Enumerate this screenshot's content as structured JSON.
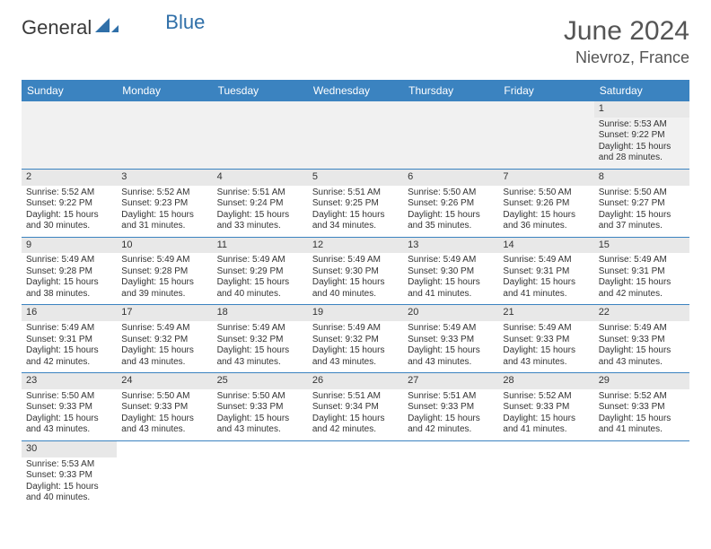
{
  "brand": {
    "part1": "General",
    "part2": "Blue",
    "logo_color": "#2f6fa8"
  },
  "title": "June 2024",
  "location": "Nievroz, France",
  "colors": {
    "header_bg": "#3b83c0",
    "header_fg": "#ffffff",
    "daynum_bg": "#e8e8e8",
    "row_divider": "#3b83c0",
    "text": "#333333"
  },
  "weekdays": [
    "Sunday",
    "Monday",
    "Tuesday",
    "Wednesday",
    "Thursday",
    "Friday",
    "Saturday"
  ],
  "weeks": [
    [
      null,
      null,
      null,
      null,
      null,
      null,
      {
        "n": "1",
        "sr": "Sunrise: 5:53 AM",
        "ss": "Sunset: 9:22 PM",
        "d1": "Daylight: 15 hours",
        "d2": "and 28 minutes."
      }
    ],
    [
      {
        "n": "2",
        "sr": "Sunrise: 5:52 AM",
        "ss": "Sunset: 9:22 PM",
        "d1": "Daylight: 15 hours",
        "d2": "and 30 minutes."
      },
      {
        "n": "3",
        "sr": "Sunrise: 5:52 AM",
        "ss": "Sunset: 9:23 PM",
        "d1": "Daylight: 15 hours",
        "d2": "and 31 minutes."
      },
      {
        "n": "4",
        "sr": "Sunrise: 5:51 AM",
        "ss": "Sunset: 9:24 PM",
        "d1": "Daylight: 15 hours",
        "d2": "and 33 minutes."
      },
      {
        "n": "5",
        "sr": "Sunrise: 5:51 AM",
        "ss": "Sunset: 9:25 PM",
        "d1": "Daylight: 15 hours",
        "d2": "and 34 minutes."
      },
      {
        "n": "6",
        "sr": "Sunrise: 5:50 AM",
        "ss": "Sunset: 9:26 PM",
        "d1": "Daylight: 15 hours",
        "d2": "and 35 minutes."
      },
      {
        "n": "7",
        "sr": "Sunrise: 5:50 AM",
        "ss": "Sunset: 9:26 PM",
        "d1": "Daylight: 15 hours",
        "d2": "and 36 minutes."
      },
      {
        "n": "8",
        "sr": "Sunrise: 5:50 AM",
        "ss": "Sunset: 9:27 PM",
        "d1": "Daylight: 15 hours",
        "d2": "and 37 minutes."
      }
    ],
    [
      {
        "n": "9",
        "sr": "Sunrise: 5:49 AM",
        "ss": "Sunset: 9:28 PM",
        "d1": "Daylight: 15 hours",
        "d2": "and 38 minutes."
      },
      {
        "n": "10",
        "sr": "Sunrise: 5:49 AM",
        "ss": "Sunset: 9:28 PM",
        "d1": "Daylight: 15 hours",
        "d2": "and 39 minutes."
      },
      {
        "n": "11",
        "sr": "Sunrise: 5:49 AM",
        "ss": "Sunset: 9:29 PM",
        "d1": "Daylight: 15 hours",
        "d2": "and 40 minutes."
      },
      {
        "n": "12",
        "sr": "Sunrise: 5:49 AM",
        "ss": "Sunset: 9:30 PM",
        "d1": "Daylight: 15 hours",
        "d2": "and 40 minutes."
      },
      {
        "n": "13",
        "sr": "Sunrise: 5:49 AM",
        "ss": "Sunset: 9:30 PM",
        "d1": "Daylight: 15 hours",
        "d2": "and 41 minutes."
      },
      {
        "n": "14",
        "sr": "Sunrise: 5:49 AM",
        "ss": "Sunset: 9:31 PM",
        "d1": "Daylight: 15 hours",
        "d2": "and 41 minutes."
      },
      {
        "n": "15",
        "sr": "Sunrise: 5:49 AM",
        "ss": "Sunset: 9:31 PM",
        "d1": "Daylight: 15 hours",
        "d2": "and 42 minutes."
      }
    ],
    [
      {
        "n": "16",
        "sr": "Sunrise: 5:49 AM",
        "ss": "Sunset: 9:31 PM",
        "d1": "Daylight: 15 hours",
        "d2": "and 42 minutes."
      },
      {
        "n": "17",
        "sr": "Sunrise: 5:49 AM",
        "ss": "Sunset: 9:32 PM",
        "d1": "Daylight: 15 hours",
        "d2": "and 43 minutes."
      },
      {
        "n": "18",
        "sr": "Sunrise: 5:49 AM",
        "ss": "Sunset: 9:32 PM",
        "d1": "Daylight: 15 hours",
        "d2": "and 43 minutes."
      },
      {
        "n": "19",
        "sr": "Sunrise: 5:49 AM",
        "ss": "Sunset: 9:32 PM",
        "d1": "Daylight: 15 hours",
        "d2": "and 43 minutes."
      },
      {
        "n": "20",
        "sr": "Sunrise: 5:49 AM",
        "ss": "Sunset: 9:33 PM",
        "d1": "Daylight: 15 hours",
        "d2": "and 43 minutes."
      },
      {
        "n": "21",
        "sr": "Sunrise: 5:49 AM",
        "ss": "Sunset: 9:33 PM",
        "d1": "Daylight: 15 hours",
        "d2": "and 43 minutes."
      },
      {
        "n": "22",
        "sr": "Sunrise: 5:49 AM",
        "ss": "Sunset: 9:33 PM",
        "d1": "Daylight: 15 hours",
        "d2": "and 43 minutes."
      }
    ],
    [
      {
        "n": "23",
        "sr": "Sunrise: 5:50 AM",
        "ss": "Sunset: 9:33 PM",
        "d1": "Daylight: 15 hours",
        "d2": "and 43 minutes."
      },
      {
        "n": "24",
        "sr": "Sunrise: 5:50 AM",
        "ss": "Sunset: 9:33 PM",
        "d1": "Daylight: 15 hours",
        "d2": "and 43 minutes."
      },
      {
        "n": "25",
        "sr": "Sunrise: 5:50 AM",
        "ss": "Sunset: 9:33 PM",
        "d1": "Daylight: 15 hours",
        "d2": "and 43 minutes."
      },
      {
        "n": "26",
        "sr": "Sunrise: 5:51 AM",
        "ss": "Sunset: 9:34 PM",
        "d1": "Daylight: 15 hours",
        "d2": "and 42 minutes."
      },
      {
        "n": "27",
        "sr": "Sunrise: 5:51 AM",
        "ss": "Sunset: 9:33 PM",
        "d1": "Daylight: 15 hours",
        "d2": "and 42 minutes."
      },
      {
        "n": "28",
        "sr": "Sunrise: 5:52 AM",
        "ss": "Sunset: 9:33 PM",
        "d1": "Daylight: 15 hours",
        "d2": "and 41 minutes."
      },
      {
        "n": "29",
        "sr": "Sunrise: 5:52 AM",
        "ss": "Sunset: 9:33 PM",
        "d1": "Daylight: 15 hours",
        "d2": "and 41 minutes."
      }
    ],
    [
      {
        "n": "30",
        "sr": "Sunrise: 5:53 AM",
        "ss": "Sunset: 9:33 PM",
        "d1": "Daylight: 15 hours",
        "d2": "and 40 minutes."
      },
      null,
      null,
      null,
      null,
      null,
      null
    ]
  ]
}
